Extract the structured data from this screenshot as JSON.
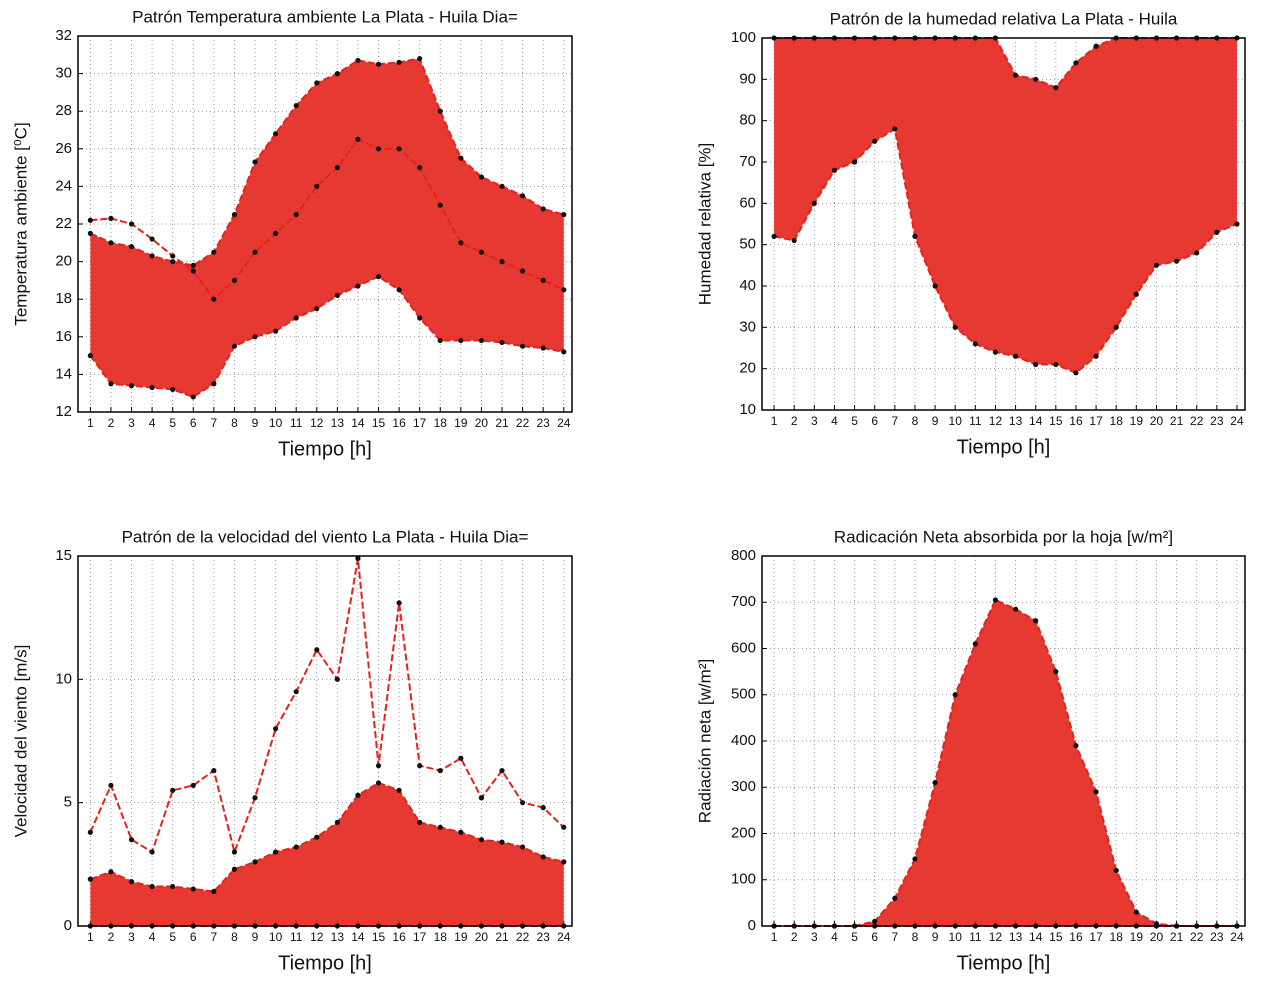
{
  "chart_data": [
    {
      "type": "line",
      "title": "Patrón Temperatura ambiente La Plata - Huila Dia=",
      "xlabel": "Tiempo [h]",
      "ylabel": "Temperatura ambiente [⁰C]",
      "x": [
        1,
        2,
        3,
        4,
        5,
        6,
        7,
        8,
        9,
        10,
        11,
        12,
        13,
        14,
        15,
        16,
        17,
        18,
        19,
        20,
        21,
        22,
        23,
        24
      ],
      "xlim": [
        0.4,
        24.4
      ],
      "xticks": [
        1,
        2,
        3,
        4,
        5,
        6,
        7,
        8,
        9,
        10,
        11,
        12,
        13,
        14,
        15,
        16,
        17,
        18,
        19,
        20,
        21,
        22,
        23,
        24
      ],
      "ylim": [
        12,
        32
      ],
      "yticks": [
        12,
        14,
        16,
        18,
        20,
        22,
        24,
        26,
        28,
        30,
        32
      ],
      "grid": true,
      "fill_between": true,
      "series": [
        {
          "color": "#e3231b",
          "values": [
            21.5,
            21,
            20.8,
            20.3,
            20,
            19.8,
            20.5,
            22.5,
            25.3,
            26.8,
            28.3,
            29.5,
            30,
            30.7,
            30.5,
            30.6,
            30.8,
            28,
            25.5,
            24.5,
            24,
            23.5,
            22.8,
            22.5
          ]
        },
        {
          "color": "#e3231b",
          "values": [
            15,
            13.5,
            13.4,
            13.3,
            13.2,
            12.8,
            13.5,
            15.5,
            16,
            16.3,
            17,
            17.5,
            18.2,
            18.7,
            19.2,
            18.5,
            17,
            15.8,
            15.8,
            15.8,
            15.7,
            15.5,
            15.4,
            15.2
          ]
        },
        {
          "color": "#e3231b",
          "values": [
            22.2,
            22.3,
            22,
            21.2,
            20.3,
            19.5,
            18,
            19,
            20.5,
            21.5,
            22.5,
            24,
            25,
            26.5,
            26,
            26,
            25,
            23,
            21,
            20.5,
            20,
            19.5,
            19,
            18.5
          ]
        }
      ]
    },
    {
      "type": "line",
      "title": "Patrón de la humedad relativa La Plata - Huila",
      "xlabel": "Tiempo [h]",
      "ylabel": "Humedad relativa [%]",
      "x": [
        1,
        2,
        3,
        4,
        5,
        6,
        7,
        8,
        9,
        10,
        11,
        12,
        13,
        14,
        15,
        16,
        17,
        18,
        19,
        20,
        21,
        22,
        23,
        24
      ],
      "xlim": [
        0.4,
        24.4
      ],
      "xticks": [
        1,
        2,
        3,
        4,
        5,
        6,
        7,
        8,
        9,
        10,
        11,
        12,
        13,
        14,
        15,
        16,
        17,
        18,
        19,
        20,
        21,
        22,
        23,
        24
      ],
      "ylim": [
        10,
        100
      ],
      "yticks": [
        10,
        20,
        30,
        40,
        50,
        60,
        70,
        80,
        90,
        100
      ],
      "grid": true,
      "fill_between": true,
      "series": [
        {
          "color": "#e3231b",
          "values": [
            100,
            100,
            100,
            100,
            100,
            100,
            100,
            100,
            100,
            100,
            100,
            100,
            91,
            90,
            88,
            94,
            98,
            100,
            100,
            100,
            100,
            100,
            100,
            100
          ]
        },
        {
          "color": "#e3231b",
          "values": [
            52,
            51,
            60,
            68,
            70,
            75,
            78,
            52,
            40,
            30,
            26,
            24,
            23,
            21,
            21,
            19,
            23,
            30,
            38,
            45,
            46,
            48,
            53,
            55
          ]
        }
      ]
    },
    {
      "type": "line",
      "title": "Patrón de la velocidad del viento La Plata - Huila Dia=",
      "xlabel": "Tiempo [h]",
      "ylabel": "Velocidad del viento [m/s]",
      "x": [
        1,
        2,
        3,
        4,
        5,
        6,
        7,
        8,
        9,
        10,
        11,
        12,
        13,
        14,
        15,
        16,
        17,
        18,
        19,
        20,
        21,
        22,
        23,
        24
      ],
      "xlim": [
        0.4,
        24.4
      ],
      "xticks": [
        1,
        2,
        3,
        4,
        5,
        6,
        7,
        8,
        9,
        10,
        11,
        12,
        13,
        14,
        15,
        16,
        17,
        18,
        19,
        20,
        21,
        22,
        23,
        24
      ],
      "ylim": [
        0,
        15
      ],
      "yticks": [
        0,
        5,
        10,
        15
      ],
      "grid": true,
      "fill_between": true,
      "series": [
        {
          "color": "#e3231b",
          "values": [
            1.9,
            2.2,
            1.8,
            1.6,
            1.6,
            1.5,
            1.4,
            2.3,
            2.6,
            3,
            3.2,
            3.6,
            4.2,
            5.3,
            5.8,
            5.5,
            4.2,
            4,
            3.8,
            3.5,
            3.4,
            3.2,
            2.8,
            2.6
          ]
        },
        {
          "color": "#e3231b",
          "values": [
            0,
            0,
            0,
            0,
            0,
            0,
            0,
            0,
            0,
            0,
            0,
            0,
            0,
            0,
            0,
            0,
            0,
            0,
            0,
            0,
            0,
            0,
            0,
            0
          ]
        },
        {
          "color": "#e3231b",
          "values": [
            3.8,
            5.7,
            3.5,
            3,
            5.5,
            5.7,
            6.3,
            3,
            5.2,
            8,
            9.5,
            11.2,
            10,
            14.9,
            6.5,
            13.1,
            6.5,
            6.3,
            6.8,
            5.2,
            6.3,
            5,
            4.8,
            4
          ]
        }
      ]
    },
    {
      "type": "line",
      "title": "Radicación Neta absorbida por la hoja [w/m²]",
      "xlabel": "Tiempo [h]",
      "ylabel": "Radiación neta [w/m²]",
      "x": [
        1,
        2,
        3,
        4,
        5,
        6,
        7,
        8,
        9,
        10,
        11,
        12,
        13,
        14,
        15,
        16,
        17,
        18,
        19,
        20,
        21,
        22,
        23,
        24
      ],
      "xlim": [
        0.4,
        24.4
      ],
      "xticks": [
        1,
        2,
        3,
        4,
        5,
        6,
        7,
        8,
        9,
        10,
        11,
        12,
        13,
        14,
        15,
        16,
        17,
        18,
        19,
        20,
        21,
        22,
        23,
        24
      ],
      "ylim": [
        0,
        800
      ],
      "yticks": [
        0,
        100,
        200,
        300,
        400,
        500,
        600,
        700,
        800
      ],
      "grid": true,
      "fill_between": true,
      "series": [
        {
          "color": "#e3231b",
          "values": [
            0,
            0,
            0,
            0,
            0,
            10,
            60,
            145,
            310,
            500,
            610,
            705,
            685,
            660,
            550,
            390,
            290,
            120,
            30,
            5,
            0,
            0,
            0,
            0
          ]
        },
        {
          "color": "#e3231b",
          "values": [
            0,
            0,
            0,
            0,
            0,
            0,
            0,
            0,
            0,
            0,
            0,
            0,
            0,
            0,
            0,
            0,
            0,
            0,
            0,
            0,
            0,
            0,
            0,
            0
          ]
        }
      ]
    }
  ]
}
